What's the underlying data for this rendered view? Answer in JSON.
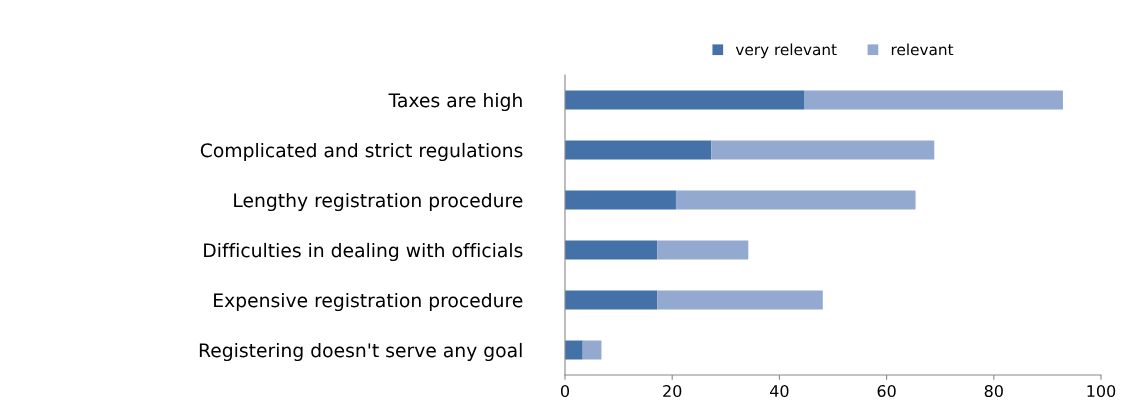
{
  "chart_data": {
    "type": "bar",
    "orientation": "horizontal",
    "stacked": true,
    "categories": [
      "Taxes are high",
      "Complicated and strict regulations",
      "Lengthy registration procedure",
      "Difficulties in dealing with officials",
      "Expensive registration procedure",
      "Registering doesn't serve any goal"
    ],
    "series": [
      {
        "name": "very relevant",
        "color": "#4472a8",
        "values": [
          44.7,
          27.3,
          20.7,
          17.2,
          17.2,
          3.3
        ]
      },
      {
        "name": "relevant",
        "color": "#94a9d0",
        "values": [
          48.2,
          41.6,
          44.7,
          17.0,
          30.9,
          3.5
        ]
      }
    ],
    "xlim": [
      0,
      100
    ],
    "xticks": [
      0,
      20,
      40,
      60,
      80,
      100
    ],
    "grid": false,
    "legend": "top"
  }
}
